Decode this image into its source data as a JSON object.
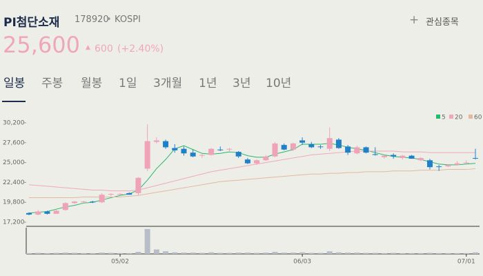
{
  "header": {
    "name": "PI첨단소재",
    "code": "178920",
    "separator": "•",
    "market": "KOSPI",
    "watch": "관심종목"
  },
  "price": {
    "current": "25,600",
    "change": "600",
    "rate": "(+2.40%)"
  },
  "tabs": [
    "일봉",
    "주봉",
    "월봉",
    "1일",
    "3개월",
    "1년",
    "3년",
    "10년"
  ],
  "chart_data": {
    "type": "candlestick",
    "categories": [
      null,
      null,
      null,
      null,
      null,
      null,
      null,
      null,
      null,
      null,
      "05/02",
      null,
      null,
      null,
      null,
      null,
      null,
      null,
      null,
      null,
      null,
      null,
      null,
      null,
      null,
      null,
      null,
      null,
      null,
      null,
      "06/03",
      null,
      null,
      null,
      null,
      null,
      null,
      null,
      null,
      null,
      null,
      null,
      null,
      null,
      null,
      null,
      null,
      null,
      "07/01",
      null
    ],
    "open": [
      18400,
      18200,
      18600,
      18300,
      18800,
      19700,
      19800,
      19900,
      19800,
      20800,
      20800,
      21000,
      21000,
      24200,
      27700,
      27800,
      26900,
      26800,
      26300,
      25900,
      26000,
      26700,
      26700,
      26400,
      25400,
      24900,
      25300,
      25800,
      27300,
      26700,
      27900,
      27400,
      27100,
      26800,
      28000,
      27100,
      26200,
      27000,
      26100,
      25700,
      26000,
      25600,
      25900,
      25300,
      25300,
      24500,
      24500,
      24700,
      24900,
      25600
    ],
    "high": [
      18500,
      18800,
      18700,
      18800,
      19800,
      20000,
      20000,
      20000,
      21000,
      21000,
      21000,
      21100,
      23100,
      30000,
      28300,
      28000,
      27400,
      27100,
      26700,
      26100,
      26900,
      27100,
      26900,
      26500,
      25600,
      25400,
      26000,
      27700,
      27500,
      27600,
      28300,
      27700,
      27300,
      29600,
      28200,
      27300,
      27200,
      27100,
      27000,
      26000,
      26200,
      26000,
      26000,
      25700,
      25500,
      24700,
      24800,
      25200,
      25300,
      26800
    ],
    "low": [
      18100,
      18100,
      18200,
      18300,
      18700,
      19600,
      19700,
      19700,
      19700,
      20600,
      20700,
      20800,
      20700,
      23900,
      27500,
      26800,
      26300,
      25900,
      25700,
      25600,
      25900,
      26500,
      26500,
      25600,
      24800,
      24700,
      25200,
      25700,
      26600,
      26500,
      27300,
      26900,
      26800,
      26500,
      26800,
      26000,
      26100,
      26200,
      25900,
      25500,
      25500,
      25400,
      25500,
      25200,
      24100,
      23900,
      24400,
      24600,
      24800,
      25400
    ],
    "close": [
      18200,
      18600,
      18300,
      18700,
      19700,
      19900,
      19900,
      19800,
      20800,
      20900,
      20900,
      20800,
      23000,
      27800,
      27900,
      27000,
      26600,
      26200,
      25800,
      26000,
      26800,
      26600,
      26800,
      25800,
      24900,
      25300,
      25800,
      27500,
      26700,
      27500,
      27600,
      27000,
      27100,
      28200,
      26900,
      26300,
      27000,
      26300,
      26000,
      25900,
      25800,
      25900,
      25500,
      25600,
      24400,
      24500,
      24700,
      24900,
      25000,
      25600
    ],
    "up_color": "#eea3b8",
    "down_color": "#1f80c8",
    "ylim": [
      16930,
      30920
    ],
    "yticks": [
      {
        "value": 17200,
        "label": "17,200"
      },
      {
        "value": 19800,
        "label": "19,800"
      },
      {
        "value": 22400,
        "label": "22,400"
      },
      {
        "value": 25000,
        "label": "25,000"
      },
      {
        "value": 27600,
        "label": "27,600"
      },
      {
        "value": 30200,
        "label": "30,200"
      }
    ],
    "series": [
      {
        "name": "5",
        "color": "#27b86a",
        "values": [
          18400,
          18500,
          18600,
          18900,
          19200,
          19400,
          19700,
          19800,
          20100,
          20400,
          20700,
          20900,
          21400,
          22700,
          24200,
          25400,
          26800,
          27200,
          26700,
          26200,
          26100,
          26200,
          26400,
          26300,
          25900,
          25700,
          25700,
          26100,
          26400,
          26700,
          27400,
          27400,
          27400,
          27500,
          27300,
          27000,
          26800,
          26600,
          26300,
          26000,
          25800,
          25700,
          25600,
          25400,
          25100,
          24800,
          24700,
          24700,
          24800,
          24900
        ]
      },
      {
        "name": "20",
        "color": "#f0a8b8",
        "values": [
          22100,
          22000,
          21900,
          21800,
          21700,
          21600,
          21500,
          21400,
          21400,
          21300,
          21300,
          21300,
          21400,
          21700,
          22000,
          22300,
          22600,
          22900,
          23200,
          23500,
          23800,
          24000,
          24200,
          24400,
          24600,
          24800,
          25000,
          25200,
          25400,
          25600,
          25800,
          26000,
          26100,
          26200,
          26300,
          26400,
          26500,
          26500,
          26500,
          26500,
          26500,
          26400,
          26400,
          26400,
          26300,
          26300,
          26300,
          26300,
          26300,
          26300
        ]
      },
      {
        "name": "60",
        "color": "#e0b9a0",
        "values": [
          20400,
          20400,
          20400,
          20400,
          20400,
          20400,
          20500,
          20500,
          20500,
          20500,
          20500,
          20600,
          20700,
          20900,
          21100,
          21300,
          21500,
          21700,
          21900,
          22100,
          22300,
          22500,
          22600,
          22700,
          22800,
          22900,
          23000,
          23100,
          23200,
          23300,
          23400,
          23500,
          23500,
          23600,
          23600,
          23700,
          23700,
          23800,
          23800,
          23800,
          23900,
          23900,
          23900,
          24000,
          24000,
          24000,
          24100,
          24100,
          24100,
          24200
        ]
      }
    ],
    "volume": [
      3,
      4,
      3,
      4,
      5,
      4,
      3,
      3,
      5,
      4,
      3,
      3,
      8,
      95,
      17,
      10,
      6,
      5,
      5,
      4,
      6,
      4,
      4,
      5,
      5,
      4,
      5,
      8,
      5,
      5,
      6,
      4,
      4,
      10,
      6,
      5,
      5,
      4,
      4,
      3,
      4,
      3,
      3,
      3,
      4,
      3,
      3,
      3,
      3,
      6
    ],
    "volume_ylim": [
      0,
      100
    ],
    "volume_color": "#b7bec7"
  }
}
